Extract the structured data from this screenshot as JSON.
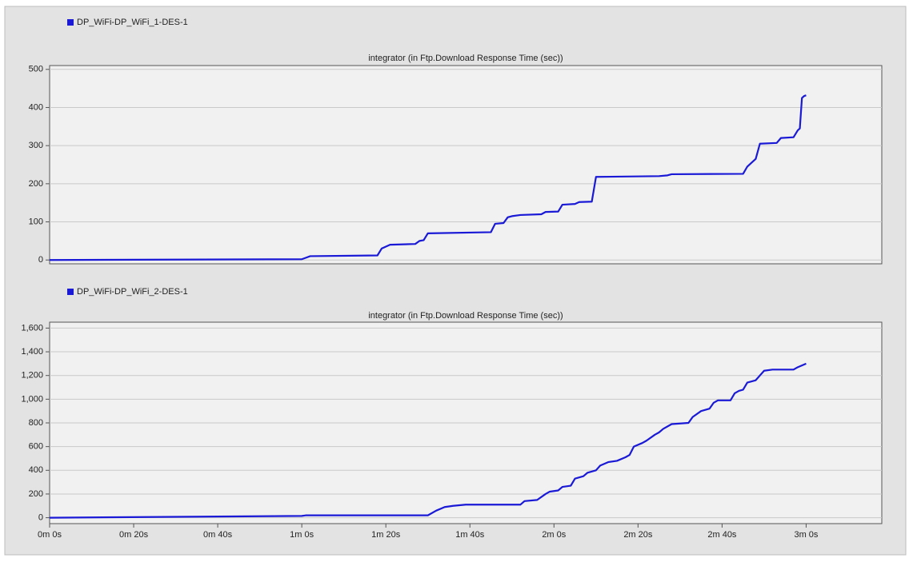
{
  "chart_data": [
    {
      "type": "line",
      "title": "integrator (in Ftp.Download Response Time (sec))",
      "xlim": [
        0,
        198
      ],
      "ylim": [
        -10,
        510
      ],
      "yticks": [
        0,
        100,
        200,
        300,
        400,
        500
      ],
      "grid": true,
      "x": [
        0,
        60,
        62,
        78,
        79,
        81,
        87,
        88,
        89,
        90,
        105,
        106,
        108,
        109,
        110,
        112,
        117,
        118,
        121,
        122,
        125,
        126,
        129,
        130,
        145,
        147,
        148,
        165,
        166,
        167,
        168,
        169,
        173,
        174,
        177,
        178,
        178.5,
        179,
        179.5,
        180
      ],
      "series": [
        {
          "name": "DP_WiFi-DP_WiFi_1-DES-1",
          "color": "#1a1ad6",
          "values": [
            0,
            2,
            10,
            12,
            30,
            40,
            42,
            50,
            52,
            70,
            73,
            95,
            97,
            112,
            115,
            118,
            120,
            126,
            127,
            145,
            147,
            152,
            153,
            218,
            220,
            222,
            225,
            226,
            245,
            255,
            265,
            305,
            307,
            320,
            322,
            340,
            345,
            425,
            430,
            432
          ]
        }
      ]
    },
    {
      "type": "line",
      "title": "integrator (in Ftp.Download Response Time (sec))",
      "xlim": [
        0,
        198
      ],
      "ylim": [
        -50,
        1650
      ],
      "yticks": [
        0,
        200,
        400,
        600,
        800,
        {
          "value": 1000,
          "label": "1,000"
        },
        {
          "value": 1200,
          "label": "1,200"
        },
        {
          "value": 1400,
          "label": "1,400"
        },
        {
          "value": 1600,
          "label": "1,600"
        }
      ],
      "xticks": [
        {
          "value": 0,
          "label": "0m 0s"
        },
        {
          "value": 20,
          "label": "0m 20s"
        },
        {
          "value": 40,
          "label": "0m 40s"
        },
        {
          "value": 60,
          "label": "1m 0s"
        },
        {
          "value": 80,
          "label": "1m 20s"
        },
        {
          "value": 100,
          "label": "1m 40s"
        },
        {
          "value": 120,
          "label": "2m 0s"
        },
        {
          "value": 140,
          "label": "2m 20s"
        },
        {
          "value": 160,
          "label": "2m 40s"
        },
        {
          "value": 180,
          "label": "3m 0s"
        }
      ],
      "grid": true,
      "x": [
        0,
        60,
        61,
        90,
        92,
        94,
        96,
        99,
        112,
        113,
        116,
        118,
        119,
        121,
        122,
        124,
        125,
        127,
        128,
        130,
        131,
        133,
        135,
        137,
        138,
        139,
        141,
        142,
        144,
        145,
        146,
        148,
        152,
        153,
        155,
        157,
        158,
        159,
        162,
        163,
        164,
        165,
        166,
        168,
        169,
        170,
        172,
        177,
        178,
        180
      ],
      "series": [
        {
          "name": "DP_WiFi-DP_WiFi_2-DES-1",
          "color": "#1a1ad6",
          "values": [
            0,
            15,
            20,
            20,
            60,
            90,
            100,
            110,
            110,
            140,
            150,
            200,
            220,
            230,
            260,
            270,
            330,
            350,
            380,
            400,
            440,
            470,
            480,
            510,
            530,
            600,
            630,
            650,
            700,
            720,
            750,
            790,
            800,
            850,
            900,
            920,
            970,
            990,
            990,
            1050,
            1070,
            1080,
            1140,
            1160,
            1200,
            1240,
            1250,
            1250,
            1270,
            1300
          ]
        }
      ]
    }
  ]
}
